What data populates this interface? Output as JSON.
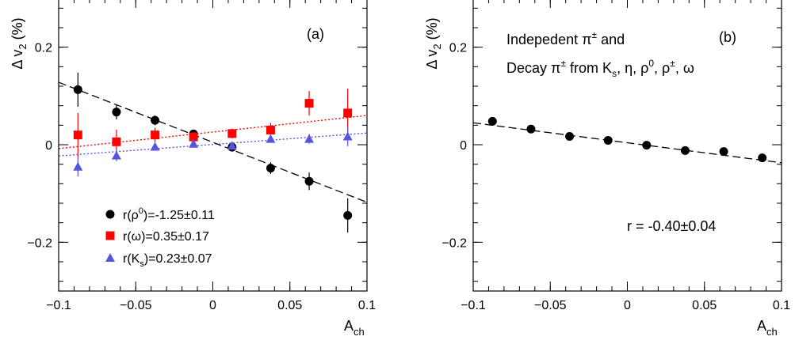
{
  "chart_data": [
    {
      "type": "scatter",
      "panel_label": "(a)",
      "xlabel": "A_ch",
      "ylabel": "Δ v_2 (%)",
      "xlim": [
        -0.1,
        0.1
      ],
      "ylim": [
        -0.3,
        0.3
      ],
      "xticks": [
        "−0.1",
        "−0.05",
        "0",
        "0.05",
        "0.1"
      ],
      "yticks": [
        "−0.2",
        "0",
        "0.2"
      ],
      "legend_position": "bottom-left",
      "series": [
        {
          "name": "r(ρ0)=-1.25±0.11",
          "marker": "circle",
          "color": "#000000",
          "x": [
            -0.0875,
            -0.0625,
            -0.0375,
            -0.0125,
            0.0125,
            0.0375,
            0.0625,
            0.0875
          ],
          "y": [
            0.113,
            0.067,
            0.05,
            0.022,
            -0.005,
            -0.048,
            -0.075,
            -0.145
          ],
          "err": [
            0.035,
            0.015,
            0.01,
            0.008,
            0.008,
            0.012,
            0.018,
            0.035
          ],
          "fit": {
            "style": "dashed",
            "color": "#000000",
            "x": [
              -0.1,
              0.1
            ],
            "y": [
              0.128,
              -0.118
            ]
          }
        },
        {
          "name": "r(ω)=0.35±0.17",
          "marker": "square",
          "color": "#ff0000",
          "x": [
            -0.0875,
            -0.0625,
            -0.0375,
            -0.0125,
            0.0125,
            0.0375,
            0.0625,
            0.0875
          ],
          "y": [
            0.02,
            0.006,
            0.02,
            0.016,
            0.023,
            0.03,
            0.085,
            0.065
          ],
          "err": [
            0.045,
            0.025,
            0.015,
            0.01,
            0.01,
            0.015,
            0.025,
            0.05
          ],
          "fit": {
            "style": "dotted",
            "color": "#ff0000",
            "x": [
              -0.1,
              0.1
            ],
            "y": [
              -0.008,
              0.06
            ]
          }
        },
        {
          "name": "r(Ks)=0.23±0.07",
          "marker": "triangle",
          "color": "#5555dd",
          "x": [
            -0.0875,
            -0.0625,
            -0.0375,
            -0.0125,
            0.0125,
            0.0375,
            0.0625,
            0.0875
          ],
          "y": [
            -0.045,
            -0.022,
            -0.004,
            0.002,
            -0.002,
            0.012,
            0.012,
            0.017
          ],
          "err": [
            0.02,
            0.012,
            0.008,
            0.006,
            0.006,
            0.007,
            0.01,
            0.02
          ],
          "fit": {
            "style": "dotted",
            "color": "#5555dd",
            "x": [
              -0.1,
              0.1
            ],
            "y": [
              -0.023,
              0.024
            ]
          }
        }
      ]
    },
    {
      "type": "scatter",
      "panel_label": "(b)",
      "xlabel": "A_ch",
      "ylabel": "Δ v_2 (%)",
      "xlim": [
        -0.1,
        0.1
      ],
      "ylim": [
        -0.3,
        0.3
      ],
      "xticks": [
        "−0.1",
        "−0.05",
        "0",
        "0.05",
        "0.1"
      ],
      "yticks": [
        "−0.2",
        "0",
        "0.2"
      ],
      "annotation_line1": "Indepedent π± and",
      "annotation_line2": "Decay π± from Ks, η, ρ0, ρ±, ω",
      "fit_result": "r = -0.40±0.04",
      "series": [
        {
          "marker": "circle",
          "color": "#000000",
          "x": [
            -0.0875,
            -0.0625,
            -0.0375,
            -0.0125,
            0.0125,
            0.0375,
            0.0625,
            0.0875
          ],
          "y": [
            0.048,
            0.032,
            0.017,
            0.009,
            -0.001,
            -0.012,
            -0.014,
            -0.027
          ],
          "err": [
            0.008,
            0.005,
            0.004,
            0.003,
            0.003,
            0.004,
            0.005,
            0.008
          ],
          "fit": {
            "style": "dashed",
            "color": "#000000",
            "x": [
              -0.1,
              0.1
            ],
            "y": [
              0.045,
              -0.037
            ]
          }
        }
      ]
    }
  ]
}
